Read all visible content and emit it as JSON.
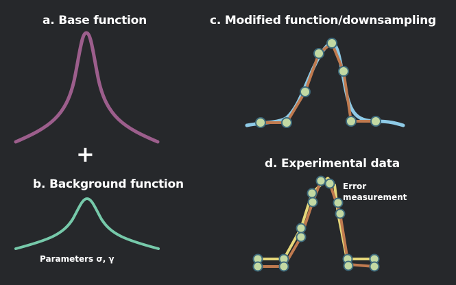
{
  "panels": {
    "a": {
      "title": "a. Base function"
    },
    "b": {
      "title": "b. Background function",
      "parameters_label": "Parameters σ, γ"
    },
    "c": {
      "title": "c. Modified function/downsampling"
    },
    "d": {
      "title": "d. Experimental data",
      "annotation_line1": "Error",
      "annotation_line2": "measurement"
    }
  },
  "operator": "+",
  "colors": {
    "background": "#26282b",
    "base_curve": "#9c5e8c",
    "background_curve": "#76c9aa",
    "modified_curve": "#8ecae6",
    "downsampled_line": "#c07a4f",
    "error_line": "#e6d87a",
    "sample_point_fill": "#c3d9a3",
    "sample_point_stroke": "#3e6a7c",
    "text": "#ffffff"
  }
}
